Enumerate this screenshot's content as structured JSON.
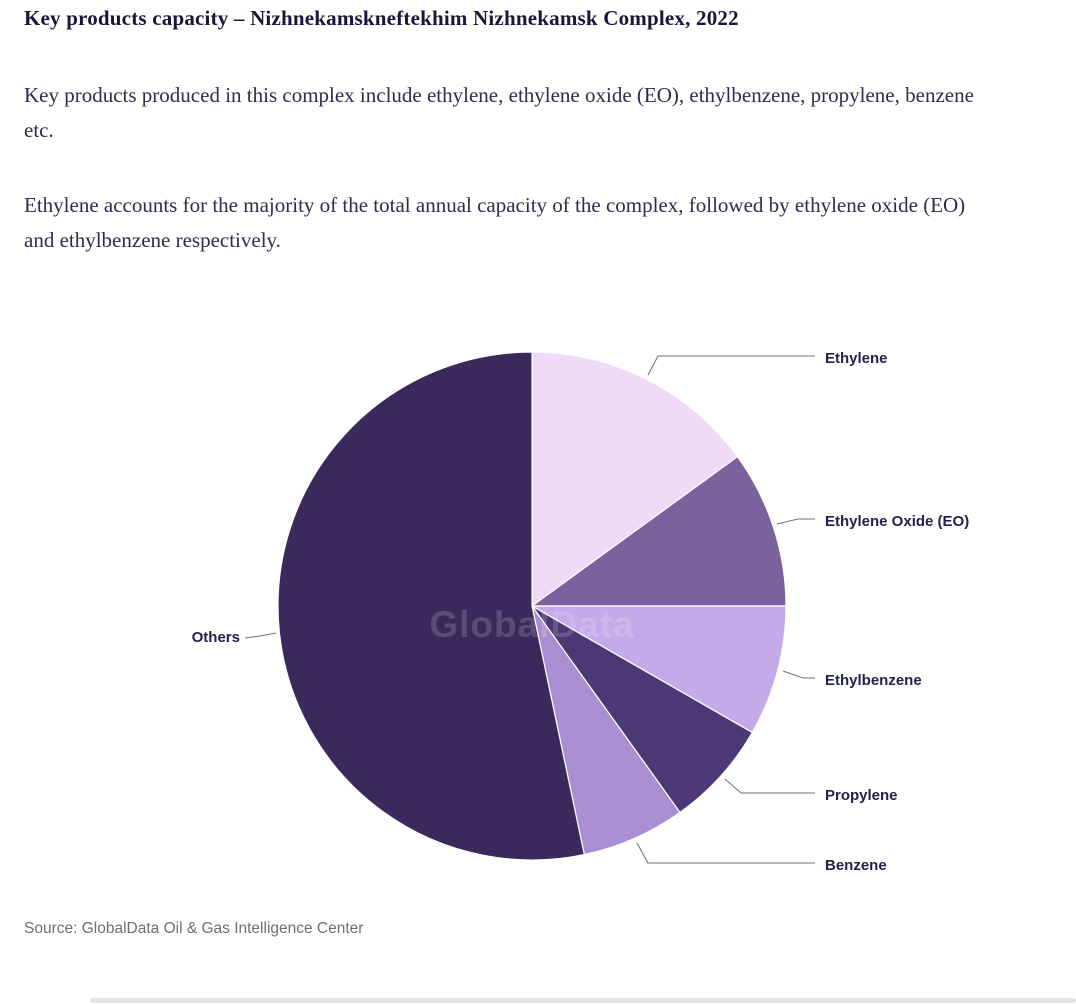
{
  "header": {
    "title": "Key products capacity – Nizhnekamskneftekhim Nizhnekamsk Complex, 2022"
  },
  "body": {
    "paragraph1": "Key products produced in this complex include ethylene, ethylene oxide (EO), ethylbenzene, propylene, benzene etc.",
    "paragraph2": "Ethylene accounts for the majority of the total annual capacity of the complex, followed by ethylene oxide (EO) and ethylbenzene respectively."
  },
  "chart_data": {
    "type": "pie",
    "title": "Key products capacity – Nizhnekamskneftekhim Nizhnekamsk Complex, 2022",
    "start_angle_deg": 0,
    "direction": "clockwise",
    "legend_position": "callout-labels",
    "grid": false,
    "watermark": "GlobalData",
    "categories": [
      "Ethylene",
      "Ethylene Oxide (EO)",
      "Ethylbenzene",
      "Propylene",
      "Benzene",
      "Others"
    ],
    "values": [
      15.0,
      10.0,
      8.3,
      6.8,
      6.6,
      53.3
    ],
    "value_unit": "percent of total annual capacity (estimated from slice angles; chart shows no numeric labels)",
    "slices": [
      {
        "label": "Ethylene",
        "value": 15.0,
        "color": "#efdaf8"
      },
      {
        "label": "Ethylene Oxide (EO)",
        "value": 10.0,
        "color": "#7b629e"
      },
      {
        "label": "Ethylbenzene",
        "value": 8.3,
        "color": "#c4aae8"
      },
      {
        "label": "Propylene",
        "value": 6.8,
        "color": "#4b3874"
      },
      {
        "label": "Benzene",
        "value": 6.6,
        "color": "#a98fd1"
      },
      {
        "label": "Others",
        "value": 53.3,
        "color": "#3a2a5c"
      }
    ]
  },
  "appearance": {
    "title_color": "#17173a",
    "body_text_color": "#2d2d4d",
    "label_color": "#20244a",
    "callout_line_color": "#737373",
    "source_color": "#6f6f6f",
    "slice_border_color": "#ffffff",
    "background": "#ffffff"
  },
  "footer": {
    "source": "Source: GlobalData Oil & Gas Intelligence Center"
  }
}
